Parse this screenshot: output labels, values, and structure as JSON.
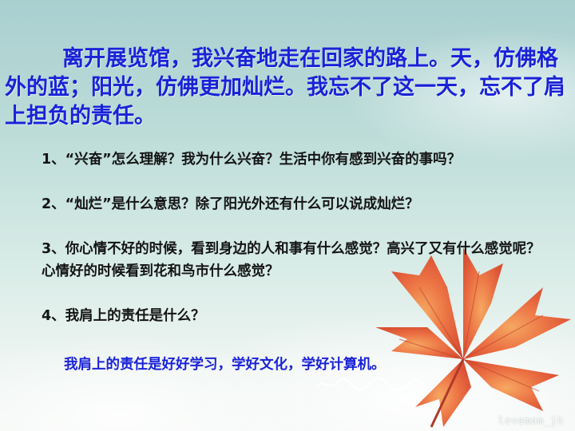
{
  "passage": "离开展览馆，我兴奋地走在回家的路上。天，仿佛格外的蓝；阳光，仿佛更加灿烂。我忘不了这一天，忘不了肩上担负的责任。",
  "questions": [
    "1、“兴奋”怎么理解？我为什么兴奋？生活中你有感到兴奋的事吗？",
    "2、“灿烂”是什么意思？除了阳光外还有什么可以说成灿烂？",
    "3、你心情不好的时候，看到身边的人和事有什么感觉？高兴了又有什么感觉呢？心情好的时候看到花和鸟市什么感觉？",
    "4、我肩上的责任是什么？"
  ],
  "answer": "我肩上的责任是好好学习，学好文化，学好计算机。",
  "watermark": "lovemom_jh",
  "colors": {
    "passage_text": "#1a22d8",
    "question_text": "#141414",
    "answer_text": "#1a22d8",
    "leaf": "#e8643a"
  }
}
